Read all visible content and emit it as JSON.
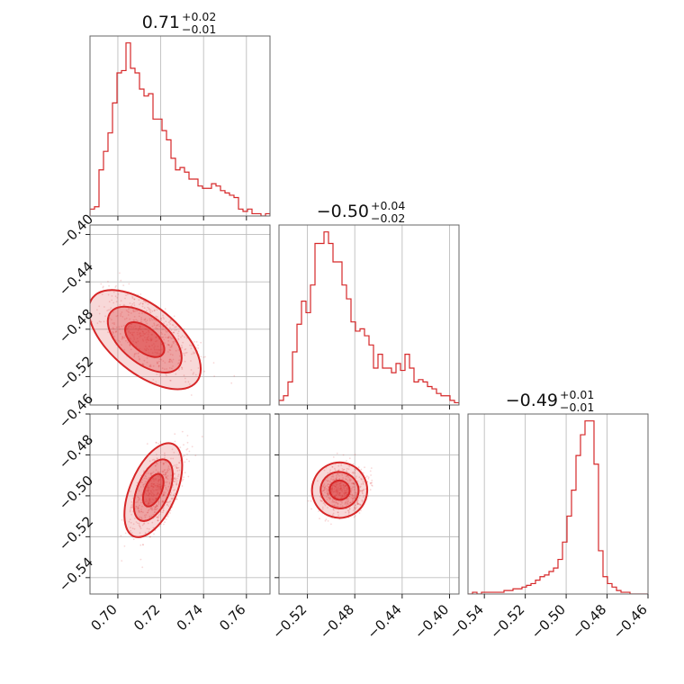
{
  "chart_data": {
    "type": "corner",
    "color": "#d62728",
    "parameters": [
      {
        "title_value": "0.71",
        "title_plus": "+0.02",
        "title_minus": "−0.01"
      },
      {
        "title_value": "−0.50",
        "title_plus": "+0.04",
        "title_minus": "−0.02"
      },
      {
        "title_value": "−0.49",
        "title_plus": "+0.01",
        "title_minus": "−0.01"
      }
    ],
    "ranges": [
      [
        0.687,
        0.771
      ],
      [
        -0.544,
        -0.392
      ],
      [
        -0.548,
        -0.46
      ]
    ],
    "ticks": [
      {
        "values": [
          0.7,
          0.72,
          0.74,
          0.76
        ],
        "labels": [
          "0.70",
          "0.72",
          "0.74",
          "0.76"
        ]
      },
      {
        "values": [
          -0.52,
          -0.48,
          -0.44,
          -0.4
        ],
        "labels": [
          "−0.52",
          "−0.48",
          "−0.44",
          "−0.40"
        ]
      },
      {
        "values": [
          -0.54,
          -0.52,
          -0.5,
          -0.48,
          -0.46
        ],
        "labels": [
          "−0.54",
          "−0.52",
          "−0.50",
          "−0.48",
          "−0.46"
        ]
      }
    ],
    "row_ticks": [
      null,
      {
        "values": [
          -0.52,
          -0.48,
          -0.44,
          -0.4
        ],
        "labels": [
          "−0.52",
          "−0.48",
          "−0.44",
          "−0.40"
        ]
      },
      {
        "values": [
          -0.54,
          -0.52,
          -0.5,
          -0.48,
          -0.46
        ],
        "labels": [
          "−0.54",
          "−0.52",
          "−0.50",
          "−0.48",
          "−0.46"
        ]
      }
    ],
    "histograms": [
      {
        "param": 0,
        "edges_start": 0.687,
        "edges_end": 0.771,
        "counts": [
          3,
          4,
          20,
          28,
          36,
          49,
          62,
          63,
          75,
          64,
          62,
          55,
          52,
          53,
          42,
          42,
          37,
          33,
          25,
          20,
          21,
          19,
          16,
          16,
          13,
          12,
          12,
          14,
          13,
          11,
          10,
          9,
          8,
          3,
          2,
          3,
          1,
          1,
          0,
          1
        ]
      },
      {
        "param": 1,
        "edges_start": -0.544,
        "edges_end": -0.392,
        "counts": [
          2,
          4,
          10,
          23,
          35,
          45,
          40,
          52,
          70,
          70,
          75,
          70,
          62,
          62,
          52,
          46,
          36,
          32,
          33,
          30,
          26,
          16,
          22,
          16,
          16,
          14,
          18,
          15,
          22,
          16,
          10,
          11,
          10,
          8,
          7,
          5,
          4,
          4,
          2,
          1
        ]
      },
      {
        "param": 2,
        "edges_start": -0.548,
        "edges_end": -0.46,
        "counts": [
          0,
          1,
          0,
          1,
          1,
          1,
          1,
          1,
          2,
          2,
          3,
          3,
          4,
          5,
          6,
          8,
          10,
          11,
          13,
          15,
          20,
          30,
          45,
          60,
          80,
          92,
          100,
          100,
          75,
          25,
          10,
          6,
          4,
          2,
          1,
          1,
          0,
          0,
          0,
          0
        ]
      }
    ],
    "pairs": [
      {
        "x_param": 0,
        "y_param": 1,
        "center": [
          0.712,
          -0.49
        ],
        "direction": [
          0.018,
          0.04
        ],
        "spread": 0.006
      },
      {
        "x_param": 0,
        "y_param": 2,
        "center": [
          0.716,
          -0.497
        ],
        "direction": [
          0.018,
          -0.008
        ],
        "spread": 0.0045
      },
      {
        "x_param": 1,
        "y_param": 2,
        "center": [
          -0.494,
          -0.497
        ],
        "direction": [
          0.04,
          -0.008
        ],
        "spread": 0.0045
      }
    ],
    "grid": true,
    "legend": "none"
  }
}
